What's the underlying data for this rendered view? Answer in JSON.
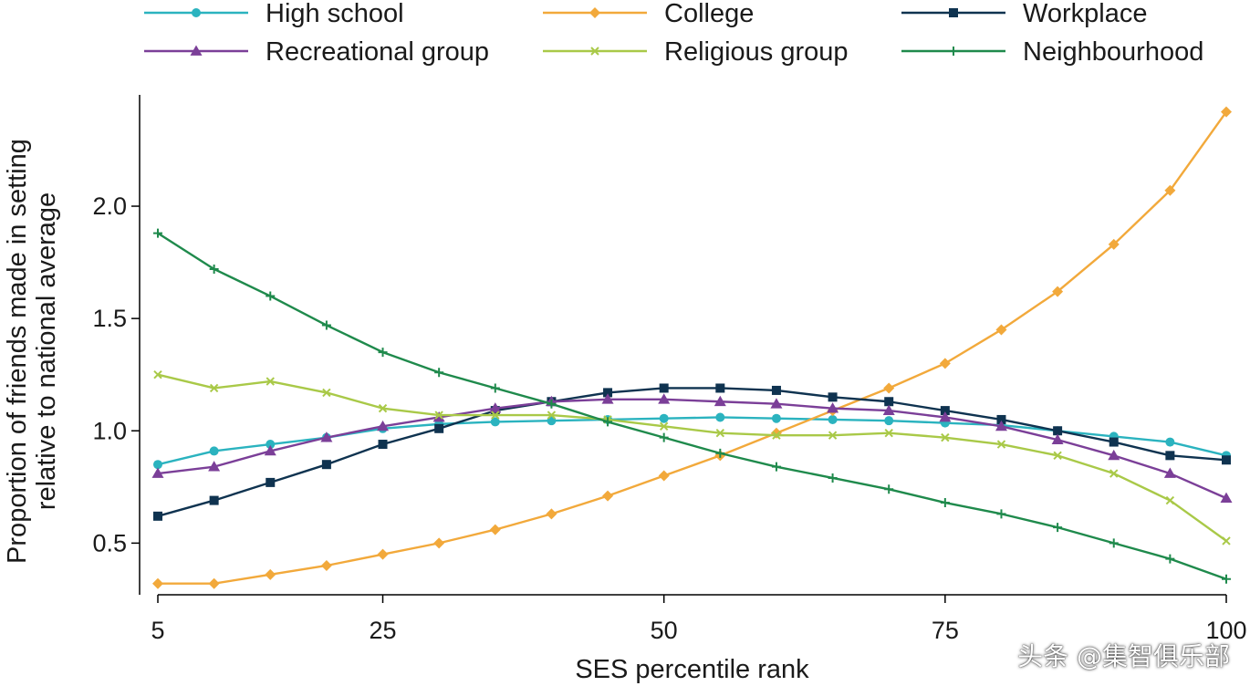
{
  "chart_data": {
    "type": "line",
    "xlabel": "SES percentile rank",
    "ylabel_line1": "Proportion of friends made in setting",
    "ylabel_line2": "relative to national average",
    "xlim": [
      5,
      100
    ],
    "ylim": [
      0.27,
      2.52
    ],
    "xticks": [
      5,
      25,
      50,
      75,
      100
    ],
    "yticks": [
      0.5,
      1.0,
      1.5,
      2.0
    ],
    "ytick_labels": [
      "0.5",
      "1.0",
      "1.5",
      "2.0"
    ],
    "grid": false,
    "legend_position": "top",
    "x": [
      5,
      10,
      15,
      20,
      25,
      30,
      35,
      40,
      45,
      50,
      55,
      60,
      65,
      70,
      75,
      80,
      85,
      90,
      95,
      100
    ],
    "series": [
      {
        "name": "High school",
        "color": "#2bb3bf",
        "marker": "circle",
        "values": [
          0.85,
          0.91,
          0.94,
          0.97,
          1.01,
          1.03,
          1.04,
          1.045,
          1.05,
          1.055,
          1.06,
          1.055,
          1.05,
          1.045,
          1.035,
          1.025,
          1.0,
          0.975,
          0.95,
          0.89
        ]
      },
      {
        "name": "College",
        "color": "#f2a93b",
        "marker": "diamond",
        "values": [
          0.32,
          0.32,
          0.36,
          0.4,
          0.45,
          0.5,
          0.56,
          0.63,
          0.71,
          0.8,
          0.89,
          0.99,
          1.09,
          1.19,
          1.3,
          1.45,
          1.62,
          1.83,
          2.07,
          2.42
        ]
      },
      {
        "name": "Workplace",
        "color": "#0f3350",
        "marker": "square",
        "values": [
          0.62,
          0.69,
          0.77,
          0.85,
          0.94,
          1.01,
          1.09,
          1.13,
          1.17,
          1.19,
          1.19,
          1.18,
          1.15,
          1.13,
          1.09,
          1.05,
          1.0,
          0.95,
          0.89,
          0.87
        ]
      },
      {
        "name": "Recreational group",
        "color": "#7b3f98",
        "marker": "triangle",
        "values": [
          0.81,
          0.84,
          0.91,
          0.97,
          1.02,
          1.06,
          1.1,
          1.13,
          1.14,
          1.14,
          1.13,
          1.12,
          1.1,
          1.09,
          1.06,
          1.02,
          0.96,
          0.89,
          0.81,
          0.7
        ]
      },
      {
        "name": "Religious group",
        "color": "#a9c948",
        "marker": "x",
        "values": [
          1.25,
          1.19,
          1.22,
          1.17,
          1.1,
          1.07,
          1.07,
          1.07,
          1.05,
          1.02,
          0.99,
          0.98,
          0.98,
          0.99,
          0.97,
          0.94,
          0.89,
          0.81,
          0.69,
          0.51
        ]
      },
      {
        "name": "Neighbourhood",
        "color": "#1f8a4c",
        "marker": "plus",
        "values": [
          1.88,
          1.72,
          1.6,
          1.47,
          1.35,
          1.26,
          1.19,
          1.12,
          1.04,
          0.97,
          0.9,
          0.84,
          0.79,
          0.74,
          0.68,
          0.63,
          0.57,
          0.5,
          0.43,
          0.34
        ]
      }
    ]
  },
  "watermark": "头条 @集智俱乐部"
}
